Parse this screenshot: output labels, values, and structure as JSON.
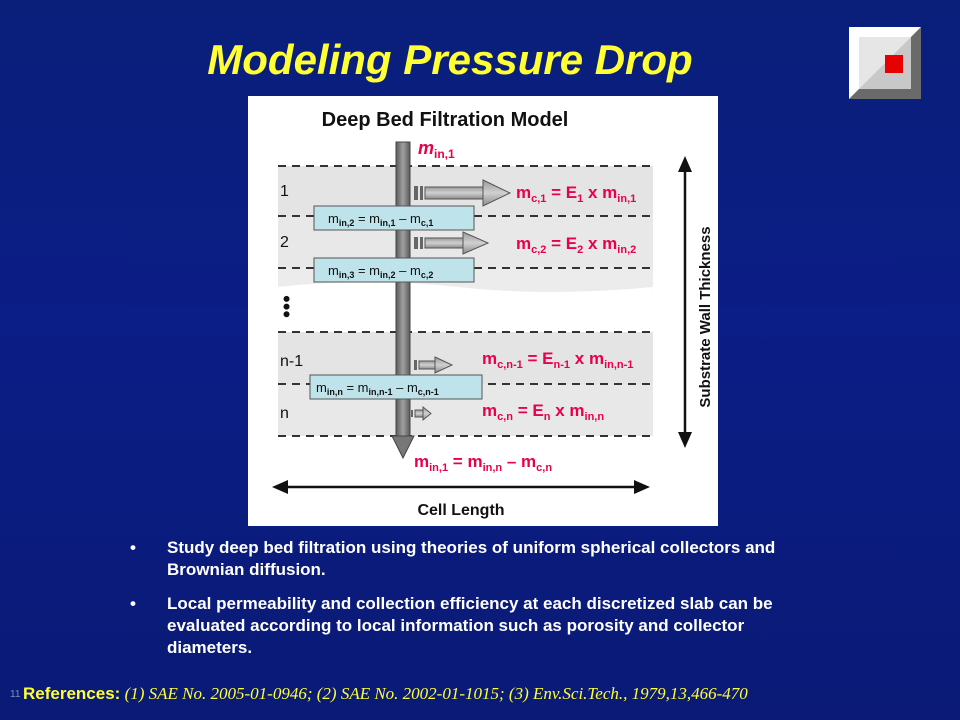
{
  "title": "Modeling Pressure Drop",
  "diagram": {
    "heading": "Deep Bed Filtration Model",
    "inlet": {
      "m": "m",
      "sub": "in,1"
    },
    "slab_labels": [
      "1",
      "2",
      "n-1",
      "n"
    ],
    "dots": "•••",
    "collected": [
      {
        "a": "m",
        "as": "c,1",
        "eq": " = E",
        "es": "1",
        "x": " x ",
        "b": "m",
        "bs": "in,1"
      },
      {
        "a": "m",
        "as": "c,2",
        "eq": " = E",
        "es": "2",
        "x": " x ",
        "b": "m",
        "bs": "in,2"
      },
      {
        "a": "m",
        "as": "c,n-1",
        "eq": " = E",
        "es": "n-1",
        "x": " x ",
        "b": "m",
        "bs": "in,n-1"
      },
      {
        "a": "m",
        "as": "c,n",
        "eq": " = E",
        "es": "n",
        "x": " x ",
        "b": "m",
        "bs": "in,n"
      }
    ],
    "boxes": [
      {
        "a": "m",
        "as": "in,2",
        "eq": " = m",
        "bs": "in,1",
        "minus": " – m",
        "cs": "c,1"
      },
      {
        "a": "m",
        "as": "in,3",
        "eq": " = m",
        "bs": "in,2",
        "minus": " – m",
        "cs": "c,2"
      },
      {
        "a": "m",
        "as": "in,n",
        "eq": " = m",
        "bs": "in,n-1",
        "minus": " – m",
        "cs": "c,n-1"
      }
    ],
    "outlet": {
      "a": "m",
      "as": "in,1",
      "eq": " = m",
      "bs": "in,n",
      "minus": " – m",
      "cs": "c,n"
    },
    "wall_label": "Substrate Wall Thickness",
    "length_label": "Cell Length"
  },
  "bullets": [
    "Study deep bed filtration using theories of uniform spherical collectors and Brownian diffusion.",
    "Local permeability and collection efficiency  at each discretized slab can be evaluated according to local information such as porosity and collector diameters."
  ],
  "bullet_char": "•",
  "references": {
    "label": "References:",
    "text": " (1) SAE No. 2005-01-0946; (2) SAE No. 2002-01-1015; (3) Env.Sci.Tech., 1979,13,466-470"
  },
  "slide_number": "11",
  "colors": {
    "title": "#ffff33",
    "accent": "#e8004c",
    "bg": "#0b1d86"
  }
}
